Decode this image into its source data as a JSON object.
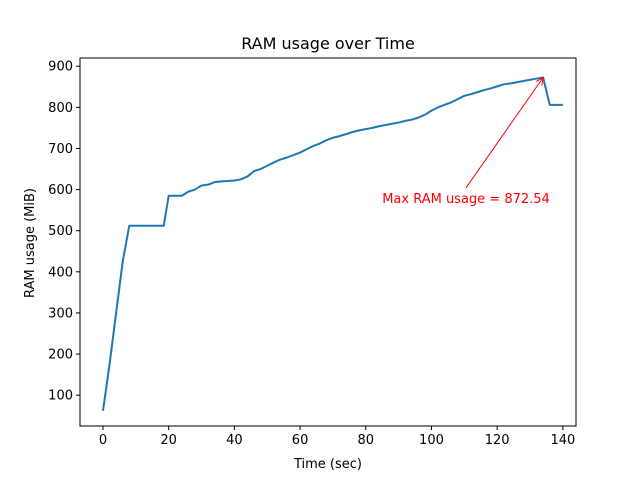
{
  "chart_data": {
    "type": "line",
    "title": "RAM usage over Time",
    "xlabel": "Time (sec)",
    "ylabel": "RAM usage (MiB)",
    "xlim": [
      -7,
      144
    ],
    "ylim": [
      25,
      920
    ],
    "xticks": [
      0,
      20,
      40,
      60,
      80,
      100,
      120,
      140
    ],
    "yticks": [
      100,
      200,
      300,
      400,
      500,
      600,
      700,
      800,
      900
    ],
    "grid": false,
    "line_color": "#1f77b4",
    "series": [
      {
        "x": [
          0,
          2,
          4,
          6,
          8,
          10,
          12,
          14,
          16,
          18.5,
          20,
          22,
          24,
          26,
          28,
          30,
          32,
          34,
          36,
          38,
          40,
          42,
          44,
          46,
          48,
          50,
          52,
          54,
          56,
          58,
          60,
          62,
          64,
          66,
          68,
          70,
          72,
          74,
          76,
          78,
          80,
          82,
          84,
          86,
          88,
          90,
          92,
          94,
          96,
          98,
          100,
          102,
          104,
          106,
          108,
          110,
          112,
          114,
          116,
          118,
          120,
          122,
          124,
          126,
          128,
          130,
          132,
          134,
          136,
          138,
          140
        ],
        "y": [
          62,
          175,
          300,
          425,
          512,
          512,
          512,
          512,
          512,
          512,
          585,
          585,
          585,
          595,
          600,
          610,
          612,
          618,
          620,
          621,
          622,
          625,
          632,
          645,
          650,
          658,
          666,
          673,
          678,
          684,
          690,
          698,
          706,
          712,
          720,
          726,
          730,
          735,
          740,
          744,
          747,
          750,
          754,
          757,
          760,
          763,
          767,
          770,
          775,
          782,
          792,
          800,
          806,
          812,
          820,
          828,
          832,
          837,
          842,
          846,
          851,
          856,
          858,
          861,
          864,
          867,
          870,
          872.54,
          806,
          806,
          806
        ]
      }
    ],
    "annotation": {
      "text": "Max RAM usage = 872.54",
      "xy": [
        134,
        872.54
      ],
      "xytext": [
        85,
        580
      ],
      "color": "#ff0000"
    }
  }
}
